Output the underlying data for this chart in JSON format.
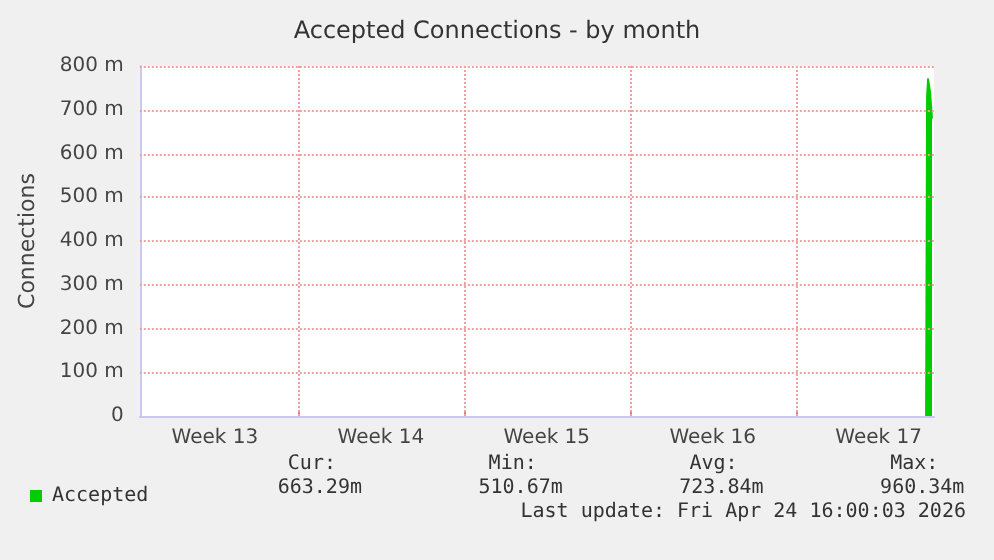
{
  "chart_data": {
    "type": "area",
    "title": "Accepted Connections - by month",
    "ylabel": "Connections",
    "series": [
      {
        "name": "Accepted",
        "color": "#00cc00",
        "x": [
          "2026-04-25T12:00",
          "2026-04-25T13:00",
          "2026-04-25T14:00",
          "2026-04-25T15:00",
          "2026-04-25T16:00",
          "2026-04-25T17:00",
          "2026-04-25T18:00"
        ],
        "values": [
          0,
          730,
          770,
          755,
          740,
          710,
          680
        ]
      }
    ],
    "xlim": [
      "2026-03-23T08:00",
      "2026-04-25T20:00"
    ],
    "xticks": [
      {
        "value": "2026-03-26T12:00",
        "label": "Week 13"
      },
      {
        "value": "2026-03-30T00:00",
        "label": null
      },
      {
        "value": "2026-04-02T12:00",
        "label": "Week 14"
      },
      {
        "value": "2026-04-06T00:00",
        "label": null
      },
      {
        "value": "2026-04-09T12:00",
        "label": "Week 15"
      },
      {
        "value": "2026-04-13T00:00",
        "label": null
      },
      {
        "value": "2026-04-16T12:00",
        "label": "Week 16"
      },
      {
        "value": "2026-04-20T00:00",
        "label": null
      },
      {
        "value": "2026-04-23T12:00",
        "label": "Week 17"
      }
    ],
    "ylim": [
      0,
      800
    ],
    "yticks": [
      0,
      {
        "value": 100,
        "label": "100 m"
      },
      {
        "value": 200,
        "label": "200 m"
      },
      {
        "value": 300,
        "label": "300 m"
      },
      {
        "value": 400,
        "label": "400 m"
      },
      {
        "value": 500,
        "label": "500 m"
      },
      {
        "value": 600,
        "label": "600 m"
      },
      {
        "value": 700,
        "label": "700 m"
      },
      {
        "value": 800,
        "label": "800 m"
      }
    ],
    "grid": true,
    "legend": "bottom left",
    "annotations": [
      "Cur:",
      "Min:",
      "Avg:",
      "Max:",
      "663.29m",
      "510.67m",
      "723.84m",
      "960.34m",
      "Last update: Fri Apr 24 16:00:03 2026"
    ]
  }
}
